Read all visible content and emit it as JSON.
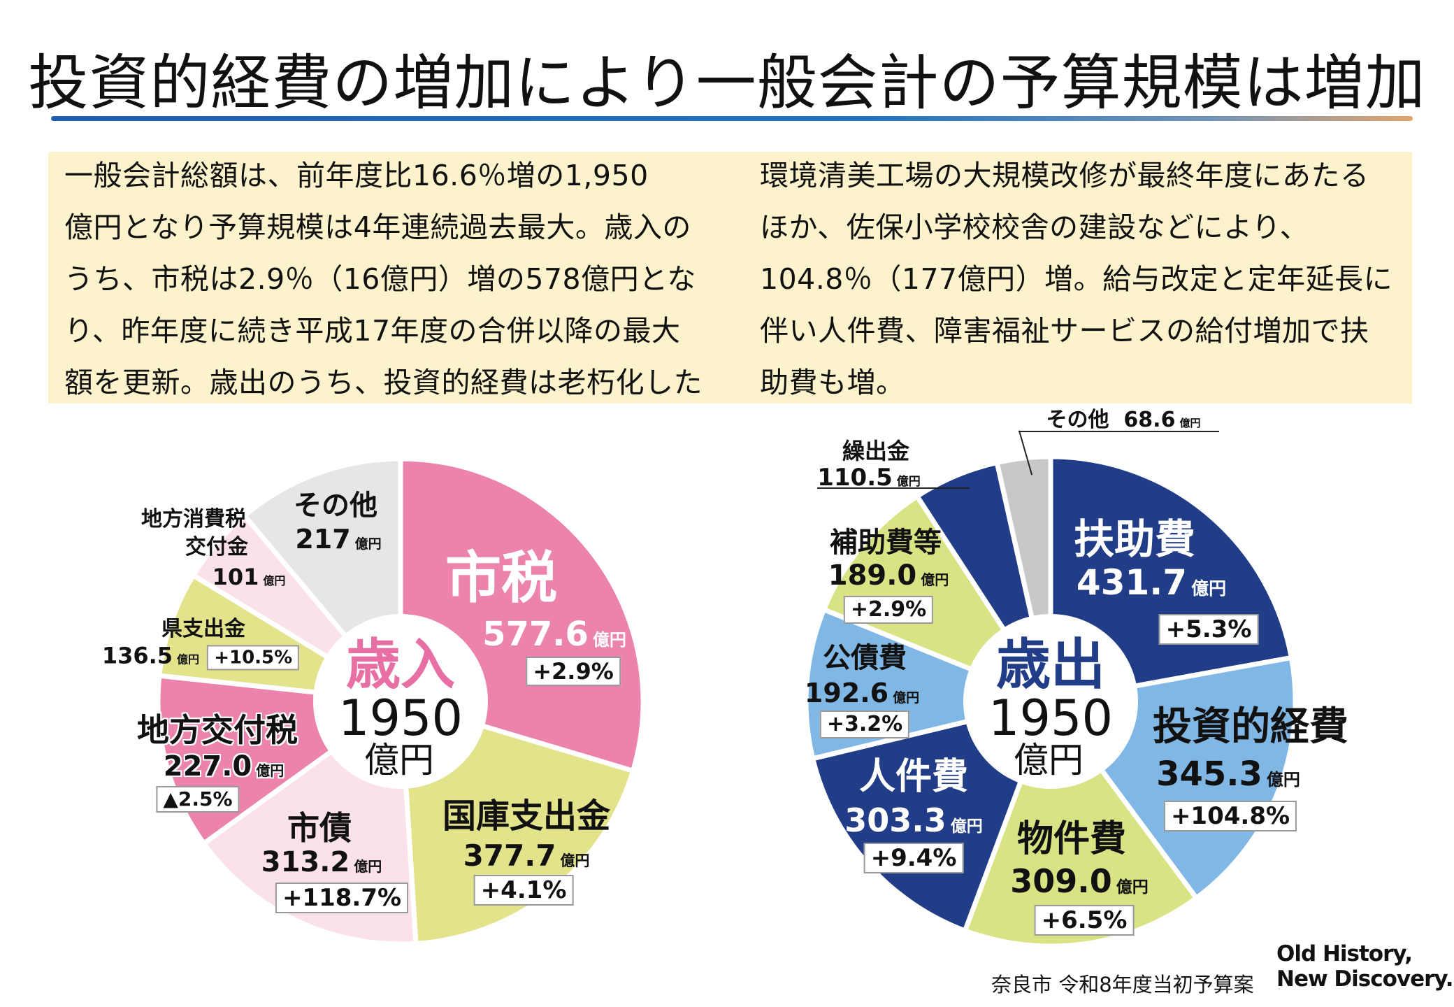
{
  "title": "投資的経費の増加により一般会計の予算規模は増加",
  "summary": {
    "left_lines": [
      "一般会計総額は、前年度比16.6％増の1,950",
      "億円となり予算規模は4年連続過去最大。歳入の",
      "うち、市税は2.9％（16億円）増の578億円とな",
      "り、昨年度に続き平成17年度の合併以降の最大",
      "額を更新。歳出のうち、投資的経費は老朽化した"
    ],
    "right_lines": [
      "環境清美工場の大規模改修が最終年度にあたる",
      "ほか、佐保小学校校舎の建設などにより、",
      "104.8％（177億円）増。給与改定と定年延長に",
      "伴い人件費、障害福祉サービスの給付増加で扶",
      "助費も増。"
    ]
  },
  "unit": "億円",
  "chart_data": [
    {
      "type": "pie",
      "title": "歳入",
      "total": "1950",
      "total_unit": "億円",
      "donut": true,
      "categories": [
        "市税",
        "国庫支出金",
        "市債",
        "地方交付税",
        "県支出金",
        "地方消費税交付金",
        "その他"
      ],
      "values": [
        577.6,
        377.7,
        313.2,
        227.0,
        136.5,
        101,
        217
      ],
      "value_labels": [
        "577.6",
        "377.7",
        "313.2",
        "227.0",
        "136.5",
        "101",
        "217"
      ],
      "changes": [
        "+2.9%",
        "+4.1%",
        "+118.7%",
        "▲2.5%",
        "+10.5%",
        "",
        ""
      ],
      "colors": [
        "#ec83ac",
        "#e3e38c",
        "#fbe2e9",
        "#ec83ac",
        "#e3e38c",
        "#fbe2e9",
        "#e6e6e6"
      ],
      "label_lines": {
        "地方消費税交付金": [
          "地方消費税",
          "交付金"
        ]
      },
      "title_color": "#e86fa3"
    },
    {
      "type": "pie",
      "title": "歳出",
      "total": "1950",
      "total_unit": "億円",
      "donut": true,
      "categories": [
        "扶助費",
        "投資的経費",
        "物件費",
        "人件費",
        "公債費",
        "補助費等",
        "繰出金",
        "その他"
      ],
      "values": [
        431.7,
        345.3,
        309.0,
        303.3,
        192.6,
        189.0,
        110.5,
        68.6
      ],
      "value_labels": [
        "431.7",
        "345.3",
        "309.0",
        "303.3",
        "192.6",
        "189.0",
        "110.5",
        "68.6"
      ],
      "changes": [
        "+5.3%",
        "+104.8%",
        "+6.5%",
        "+9.4%",
        "+3.2%",
        "+2.9%",
        "",
        ""
      ],
      "colors": [
        "#213d88",
        "#80b7e4",
        "#d9e383",
        "#213d88",
        "#80b7e4",
        "#d9e383",
        "#213d88",
        "#c8c8c8"
      ],
      "title_color": "#213d88"
    }
  ],
  "source": "奈良市 令和8年度当初予算案",
  "logo": {
    "line1": "Old History,",
    "line2": "New Discovery."
  }
}
